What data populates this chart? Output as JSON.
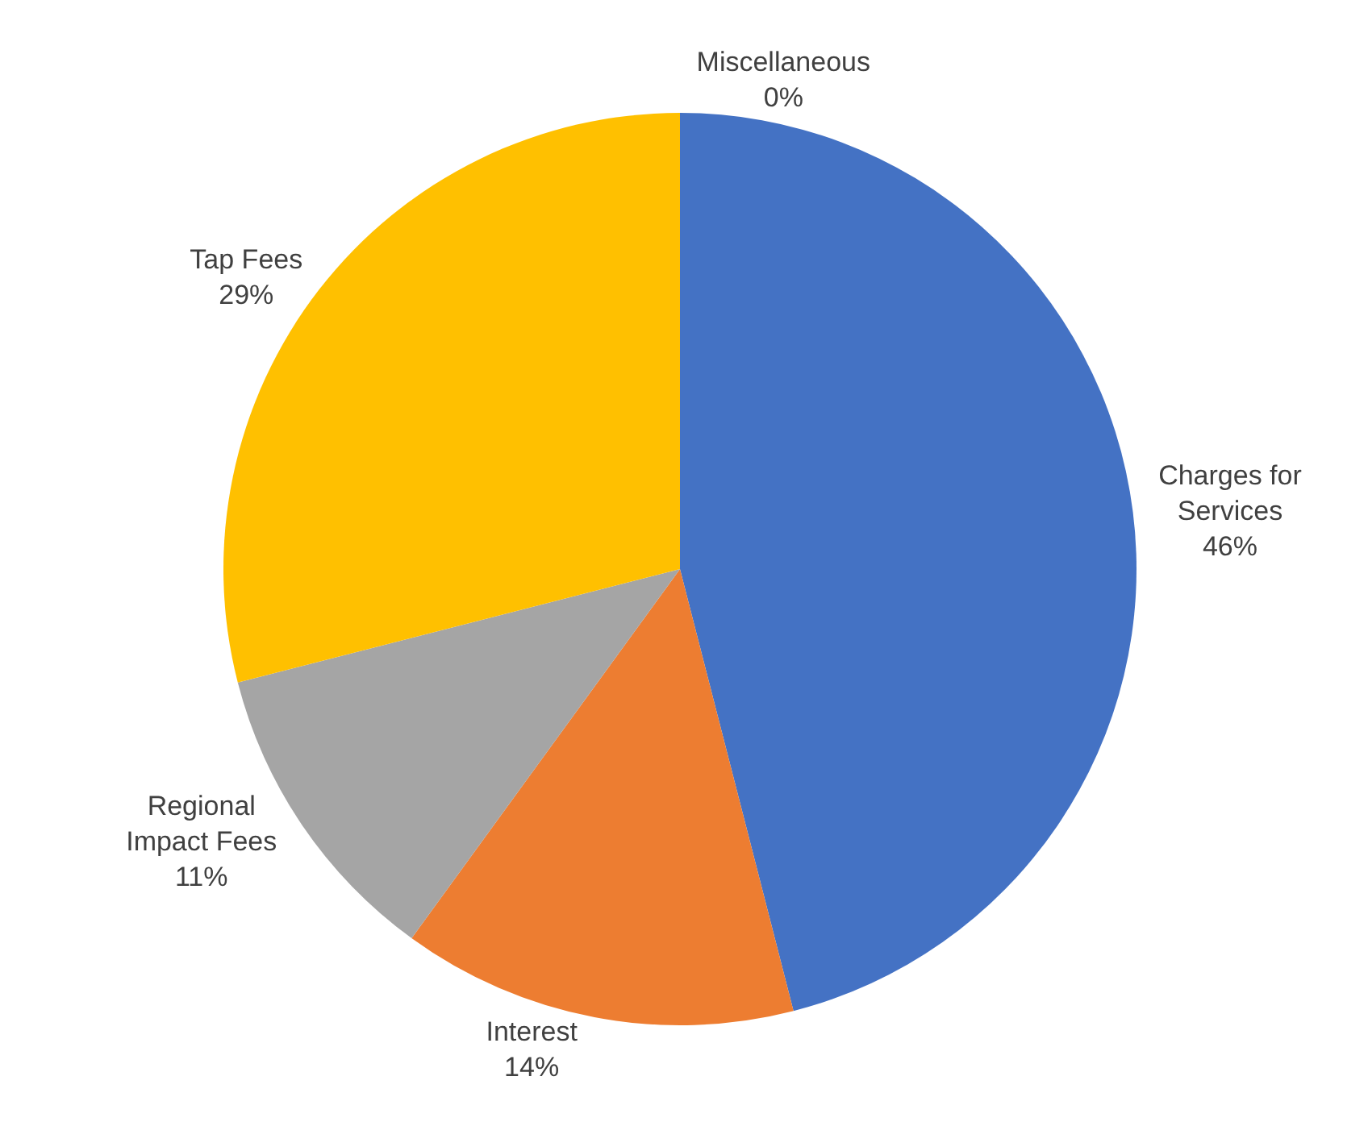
{
  "chart_data": {
    "type": "pie",
    "categories": [
      "Charges for Services",
      "Interest",
      "Regional Impact Fees",
      "Tap Fees",
      "Miscellaneous"
    ],
    "values": [
      46,
      14,
      11,
      29,
      0
    ],
    "value_labels": [
      "46%",
      "14%",
      "11%",
      "29%",
      "0%"
    ],
    "colors": [
      "#4472c4",
      "#ed7d31",
      "#a5a5a5",
      "#ffc000",
      "#5b9bd5"
    ],
    "legend": false
  }
}
